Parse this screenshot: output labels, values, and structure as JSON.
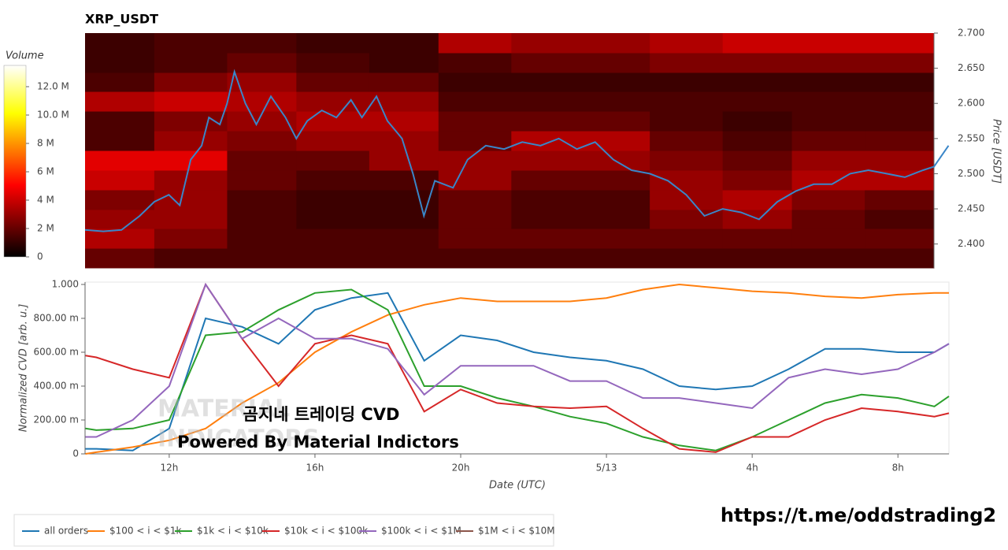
{
  "chart_data": [
    {
      "type": "heatmap",
      "title": "XRP_USDT",
      "ylabel": "Price [USDT]",
      "xlim": [
        9.7,
        33.0
      ],
      "ylim": [
        2.366,
        2.7
      ],
      "yticks": [
        {
          "value": 2.4,
          "label": "2.400"
        },
        {
          "value": 2.45,
          "label": "2.450"
        },
        {
          "value": 2.5,
          "label": "2.500"
        },
        {
          "value": 2.55,
          "label": "2.550"
        },
        {
          "value": 2.6,
          "label": "2.600"
        },
        {
          "value": 2.65,
          "label": "2.650"
        },
        {
          "value": 2.7,
          "label": "2.700"
        }
      ],
      "colorscale": "hot",
      "colorbar": {
        "title": "Volume",
        "zlim": [
          0,
          13.5
        ],
        "ticks": [
          0,
          {
            "value": 2,
            "label": "2 M"
          },
          {
            "value": 4,
            "label": "4 M"
          },
          {
            "value": 6,
            "label": "6 M"
          },
          {
            "value": 8,
            "label": "8 M"
          },
          {
            "value": 10,
            "label": "10.0 M"
          },
          {
            "value": 12,
            "label": "12.0 M"
          }
        ]
      },
      "heatmap": {
        "x_edges": [
          9.7,
          11.6,
          13.6,
          15.5,
          17.5,
          19.4,
          21.4,
          23.3,
          25.2,
          27.2,
          29.1,
          31.1,
          33.0
        ],
        "y_edges": [
          2.366,
          2.394,
          2.422,
          2.449,
          2.477,
          2.505,
          2.533,
          2.561,
          2.589,
          2.617,
          2.644,
          2.672,
          2.7
        ],
        "z": [
          [
            2,
            1.5,
            1.5,
            1.5,
            1.5,
            1.5,
            1.5,
            1.5,
            1.5,
            1.5,
            1.5,
            1.5
          ],
          [
            3.5,
            2.5,
            1.5,
            1.5,
            1.5,
            2,
            2,
            2,
            2,
            2,
            2,
            2
          ],
          [
            3,
            3,
            1.5,
            1.2,
            1.2,
            2,
            1.5,
            1.5,
            2.5,
            3,
            2,
            1.5
          ],
          [
            2.5,
            3,
            1.5,
            1.2,
            1.2,
            2,
            1.5,
            1.5,
            3,
            3.5,
            2.5,
            2
          ],
          [
            4,
            3,
            2,
            1.5,
            1.5,
            3,
            2,
            2,
            3,
            2.5,
            3.5,
            3.5
          ],
          [
            4.5,
            4.5,
            2,
            2,
            3,
            3,
            3,
            3,
            2.5,
            2,
            3,
            3
          ],
          [
            1.5,
            3,
            2.5,
            3,
            3,
            2,
            3.5,
            3.5,
            2,
            1.5,
            2,
            2
          ],
          [
            1.5,
            2.5,
            3,
            3.5,
            3.5,
            2,
            2,
            2,
            1.5,
            1.2,
            1.5,
            1.5
          ],
          [
            3.5,
            4,
            3.5,
            3,
            3,
            1.5,
            1.5,
            1.5,
            1.5,
            1.5,
            1.5,
            1.5
          ],
          [
            1.5,
            2.5,
            3,
            2,
            2,
            1.2,
            1.2,
            1.2,
            1.2,
            1.2,
            1.2,
            1.2
          ],
          [
            1.2,
            1.5,
            2,
            1.5,
            1.2,
            1.5,
            2,
            2,
            2.5,
            2.5,
            2.5,
            2.5
          ],
          [
            1.2,
            1.5,
            1.5,
            1.2,
            1.2,
            3.5,
            3,
            3,
            3.5,
            4,
            4,
            4
          ]
        ]
      },
      "line": {
        "color": "#3a86c8",
        "x": [
          9.7,
          10.2,
          10.7,
          11.2,
          11.6,
          12.0,
          12.3,
          12.6,
          12.9,
          13.1,
          13.4,
          13.6,
          13.8,
          14.1,
          14.4,
          14.8,
          15.2,
          15.5,
          15.8,
          16.2,
          16.6,
          17.0,
          17.3,
          17.7,
          18.0,
          18.4,
          18.7,
          19.0,
          19.3,
          19.8,
          20.2,
          20.7,
          21.2,
          21.7,
          22.2,
          22.7,
          23.2,
          23.7,
          24.2,
          24.7,
          25.2,
          25.7,
          26.2,
          26.7,
          27.2,
          27.7,
          28.2,
          28.7,
          29.2,
          29.7,
          30.2,
          30.7,
          31.2,
          31.7,
          32.2,
          32.7,
          33.0,
          33.4
        ],
        "values": [
          2.42,
          2.418,
          2.42,
          2.44,
          2.46,
          2.47,
          2.455,
          2.52,
          2.54,
          2.58,
          2.57,
          2.6,
          2.645,
          2.6,
          2.57,
          2.61,
          2.58,
          2.55,
          2.575,
          2.59,
          2.58,
          2.605,
          2.58,
          2.61,
          2.575,
          2.55,
          2.5,
          2.44,
          2.49,
          2.48,
          2.52,
          2.54,
          2.535,
          2.545,
          2.54,
          2.55,
          2.535,
          2.545,
          2.52,
          2.505,
          2.5,
          2.49,
          2.47,
          2.44,
          2.45,
          2.445,
          2.435,
          2.46,
          2.475,
          2.485,
          2.485,
          2.5,
          2.505,
          2.5,
          2.495,
          2.505,
          2.51,
          2.54
        ]
      }
    },
    {
      "type": "line",
      "xlabel": "Date (UTC)",
      "ylabel": "Normalized CVD [arb. u.]",
      "xlim": [
        9.69,
        33.4
      ],
      "ylim": [
        0,
        1.014
      ],
      "xticks": [
        {
          "value": 12,
          "label": "12h"
        },
        {
          "value": 16,
          "label": "16h"
        },
        {
          "value": 20,
          "label": "20h"
        },
        {
          "value": 24,
          "label": "5/13"
        },
        {
          "value": 28,
          "label": "4h"
        },
        {
          "value": 32,
          "label": "8h"
        }
      ],
      "yticks": [
        0,
        {
          "value": 0.2,
          "label": "200.00 m"
        },
        {
          "value": 0.4,
          "label": "400.00 m"
        },
        {
          "value": 0.6,
          "label": "600.00 m"
        },
        {
          "value": 0.8,
          "label": "800.00 m"
        },
        {
          "value": 1,
          "label": "1.000"
        }
      ],
      "x": [
        9.7,
        10,
        11,
        12,
        13,
        14,
        15,
        16,
        17,
        18,
        19,
        20,
        21,
        22,
        23,
        24,
        25,
        26,
        27,
        28,
        29,
        30,
        31,
        32,
        33,
        33.4
      ],
      "series": [
        {
          "name": "all orders",
          "color": "#1f77b4",
          "values": [
            0.03,
            0.03,
            0.02,
            0.15,
            0.8,
            0.75,
            0.65,
            0.85,
            0.92,
            0.95,
            0.55,
            0.7,
            0.67,
            0.6,
            0.57,
            0.55,
            0.5,
            0.4,
            0.38,
            0.4,
            0.5,
            0.62,
            0.62,
            0.6,
            0.6,
            0.65
          ]
        },
        {
          "name": "$100 < i < $1k",
          "color": "#ff7f0e",
          "values": [
            0,
            0.01,
            0.04,
            0.08,
            0.15,
            0.3,
            0.42,
            0.6,
            0.72,
            0.82,
            0.88,
            0.92,
            0.9,
            0.9,
            0.9,
            0.92,
            0.97,
            1.0,
            0.98,
            0.96,
            0.95,
            0.93,
            0.92,
            0.94,
            0.95,
            0.95
          ]
        },
        {
          "name": "$1k < i < $10k",
          "color": "#2ca02c",
          "values": [
            0.15,
            0.14,
            0.15,
            0.2,
            0.7,
            0.72,
            0.85,
            0.95,
            0.97,
            0.85,
            0.4,
            0.4,
            0.33,
            0.28,
            0.22,
            0.18,
            0.1,
            0.05,
            0.02,
            0.1,
            0.2,
            0.3,
            0.35,
            0.33,
            0.28,
            0.34
          ]
        },
        {
          "name": "$10k < i < $100k",
          "color": "#d62728",
          "values": [
            0.58,
            0.57,
            0.5,
            0.45,
            1.0,
            0.68,
            0.4,
            0.65,
            0.7,
            0.65,
            0.25,
            0.38,
            0.3,
            0.28,
            0.27,
            0.28,
            0.15,
            0.03,
            0.01,
            0.1,
            0.1,
            0.2,
            0.27,
            0.25,
            0.22,
            0.24
          ]
        },
        {
          "name": "$100k < i < $1M",
          "color": "#9467bd",
          "values": [
            0.1,
            0.1,
            0.2,
            0.4,
            1.0,
            0.68,
            0.8,
            0.68,
            0.68,
            0.62,
            0.35,
            0.52,
            0.52,
            0.52,
            0.43,
            0.43,
            0.33,
            0.33,
            0.3,
            0.27,
            0.45,
            0.5,
            0.47,
            0.5,
            0.6,
            0.65
          ]
        },
        {
          "name": "$1M < i < $10M",
          "color": "#8c564b",
          "values": [
            null,
            null,
            null,
            null,
            null,
            null,
            null,
            null,
            null,
            null,
            null,
            null,
            null,
            null,
            null,
            null,
            null,
            null,
            null,
            null,
            null,
            null,
            null,
            null,
            null,
            null
          ]
        }
      ]
    }
  ],
  "annotations": {
    "watermark": [
      "MATERIAL",
      "INDICATORS"
    ],
    "caption": "곰지네 트레이딩 CVD",
    "credit": "Powered By Material Indictors",
    "link": "https://t.me/oddstrading2"
  }
}
